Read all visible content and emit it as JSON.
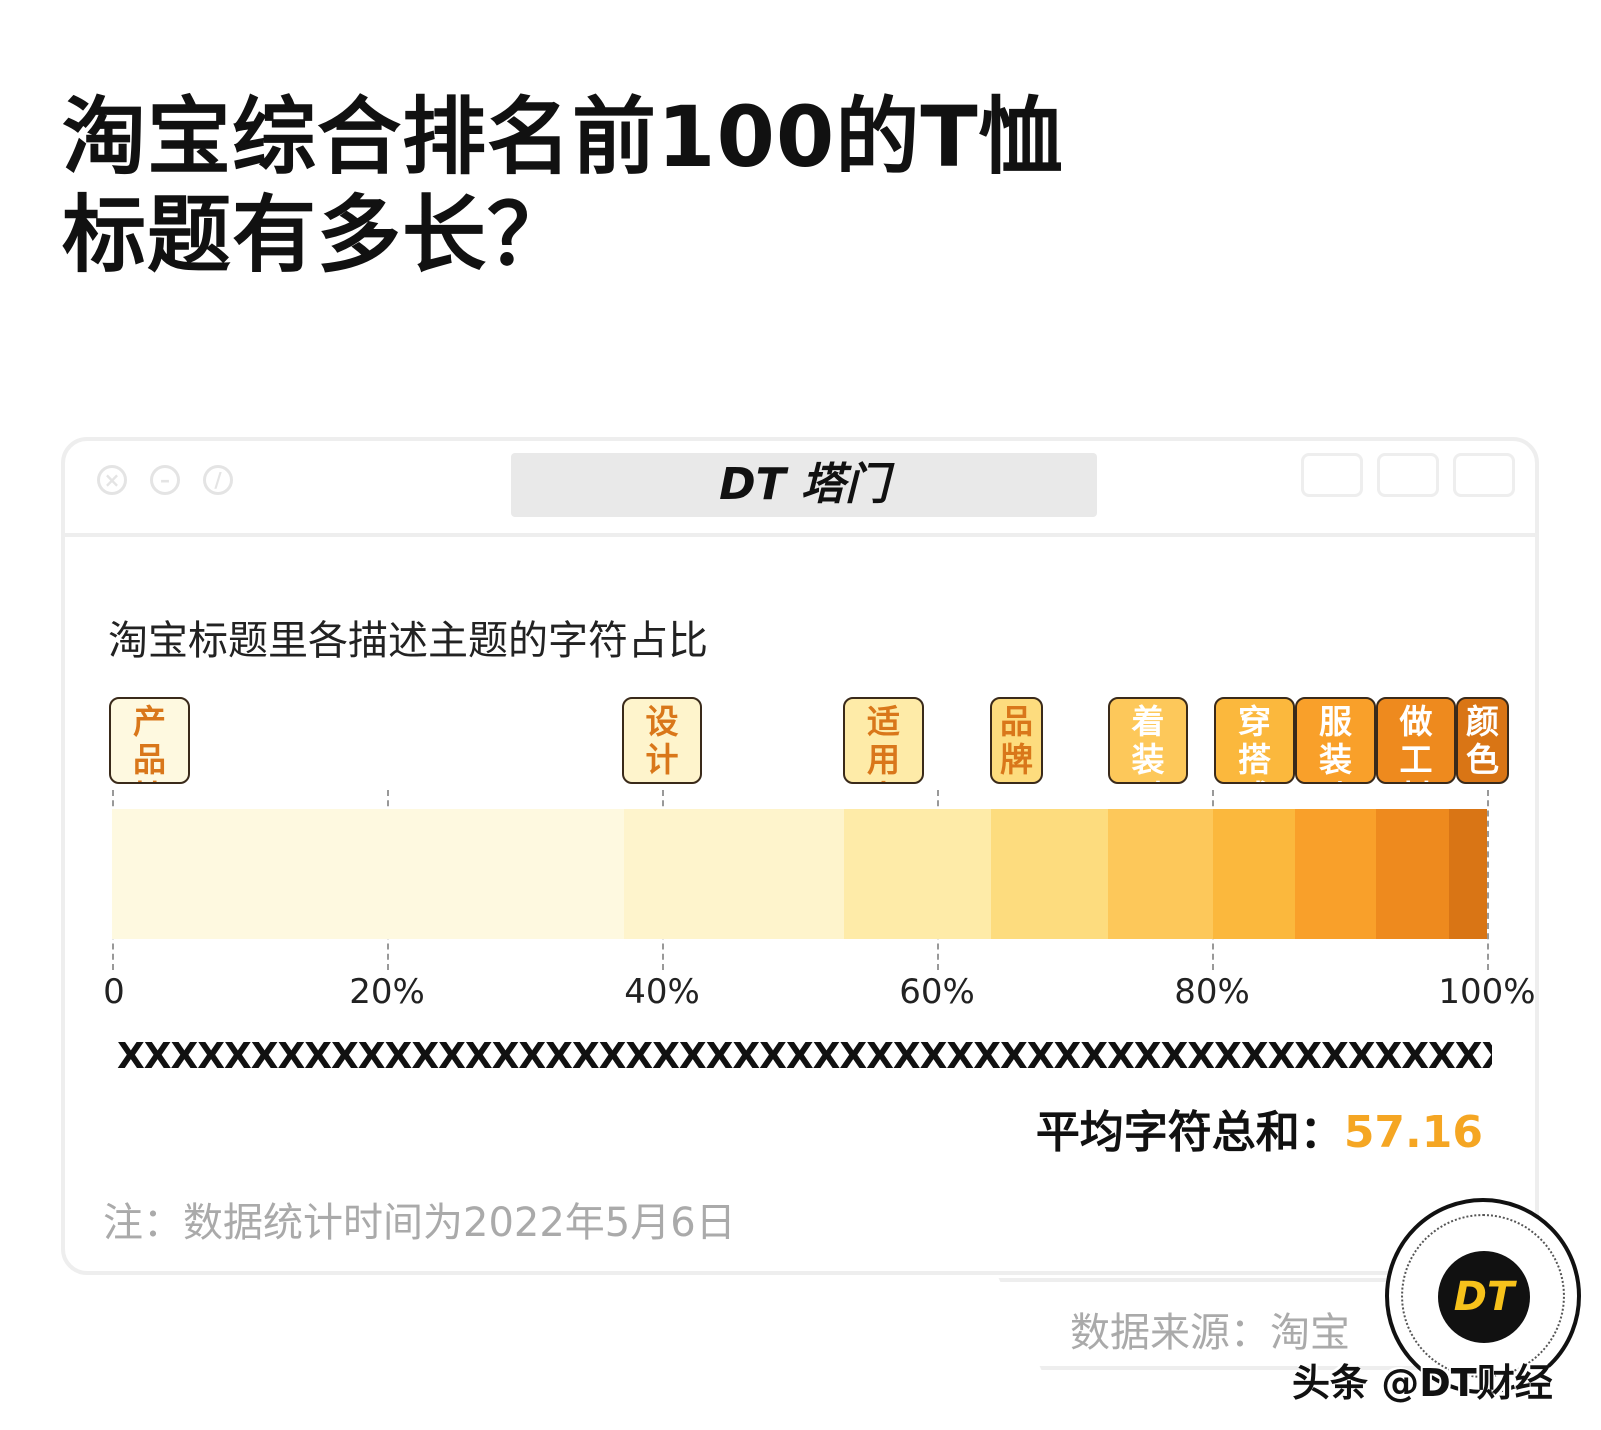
{
  "title_lines": [
    "淘宝综合排名前100的T恤",
    "标题有多长？"
  ],
  "window": {
    "brand": "DT 塔门",
    "controls": [
      "close-icon",
      "minimize-icon",
      "block-icon"
    ]
  },
  "chart_data": {
    "type": "bar",
    "orientation": "horizontal-stacked-100",
    "title": "淘宝标题里各描述主题的字符占比",
    "categories": [
      "产品性质",
      "设计风格",
      "适用人群",
      "品牌",
      "着装时间",
      "穿搭感觉",
      "服装功能",
      "做工材质",
      "颜色"
    ],
    "values": [
      37.2,
      16.0,
      10.7,
      8.5,
      7.7,
      5.9,
      5.9,
      5.3,
      2.8
    ],
    "unit": "%",
    "colors": [
      "#FEF9E0",
      "#FEF4CC",
      "#FEEBA8",
      "#FDDC7E",
      "#FDC85A",
      "#FBB83D",
      "#F9A02A",
      "#EE8A1E",
      "#D97515"
    ],
    "label_text_colors": [
      "#D9771A",
      "#D9771A",
      "#D9771A",
      "#D9771A",
      "#ffffff",
      "#ffffff",
      "#ffffff",
      "#ffffff",
      "#ffffff"
    ],
    "xlim": [
      0,
      100
    ],
    "x_ticks": [
      "0",
      "20%",
      "40%",
      "60%",
      "80%",
      "100%"
    ],
    "grid": true
  },
  "x_row": "XXXXXXXXXXXXXXXXXXXXXXXXXXXXXXXXXXXXXXXXXXXXXXXXXXXXXXXXXXXXXXXXXXXX",
  "average": {
    "label": "平均字符总和：",
    "value": "57.16"
  },
  "note": "注：数据统计时间为2022年5月6日",
  "source": "数据来源：淘宝",
  "logo": "DT",
  "watermark": "头条 @DT财经"
}
